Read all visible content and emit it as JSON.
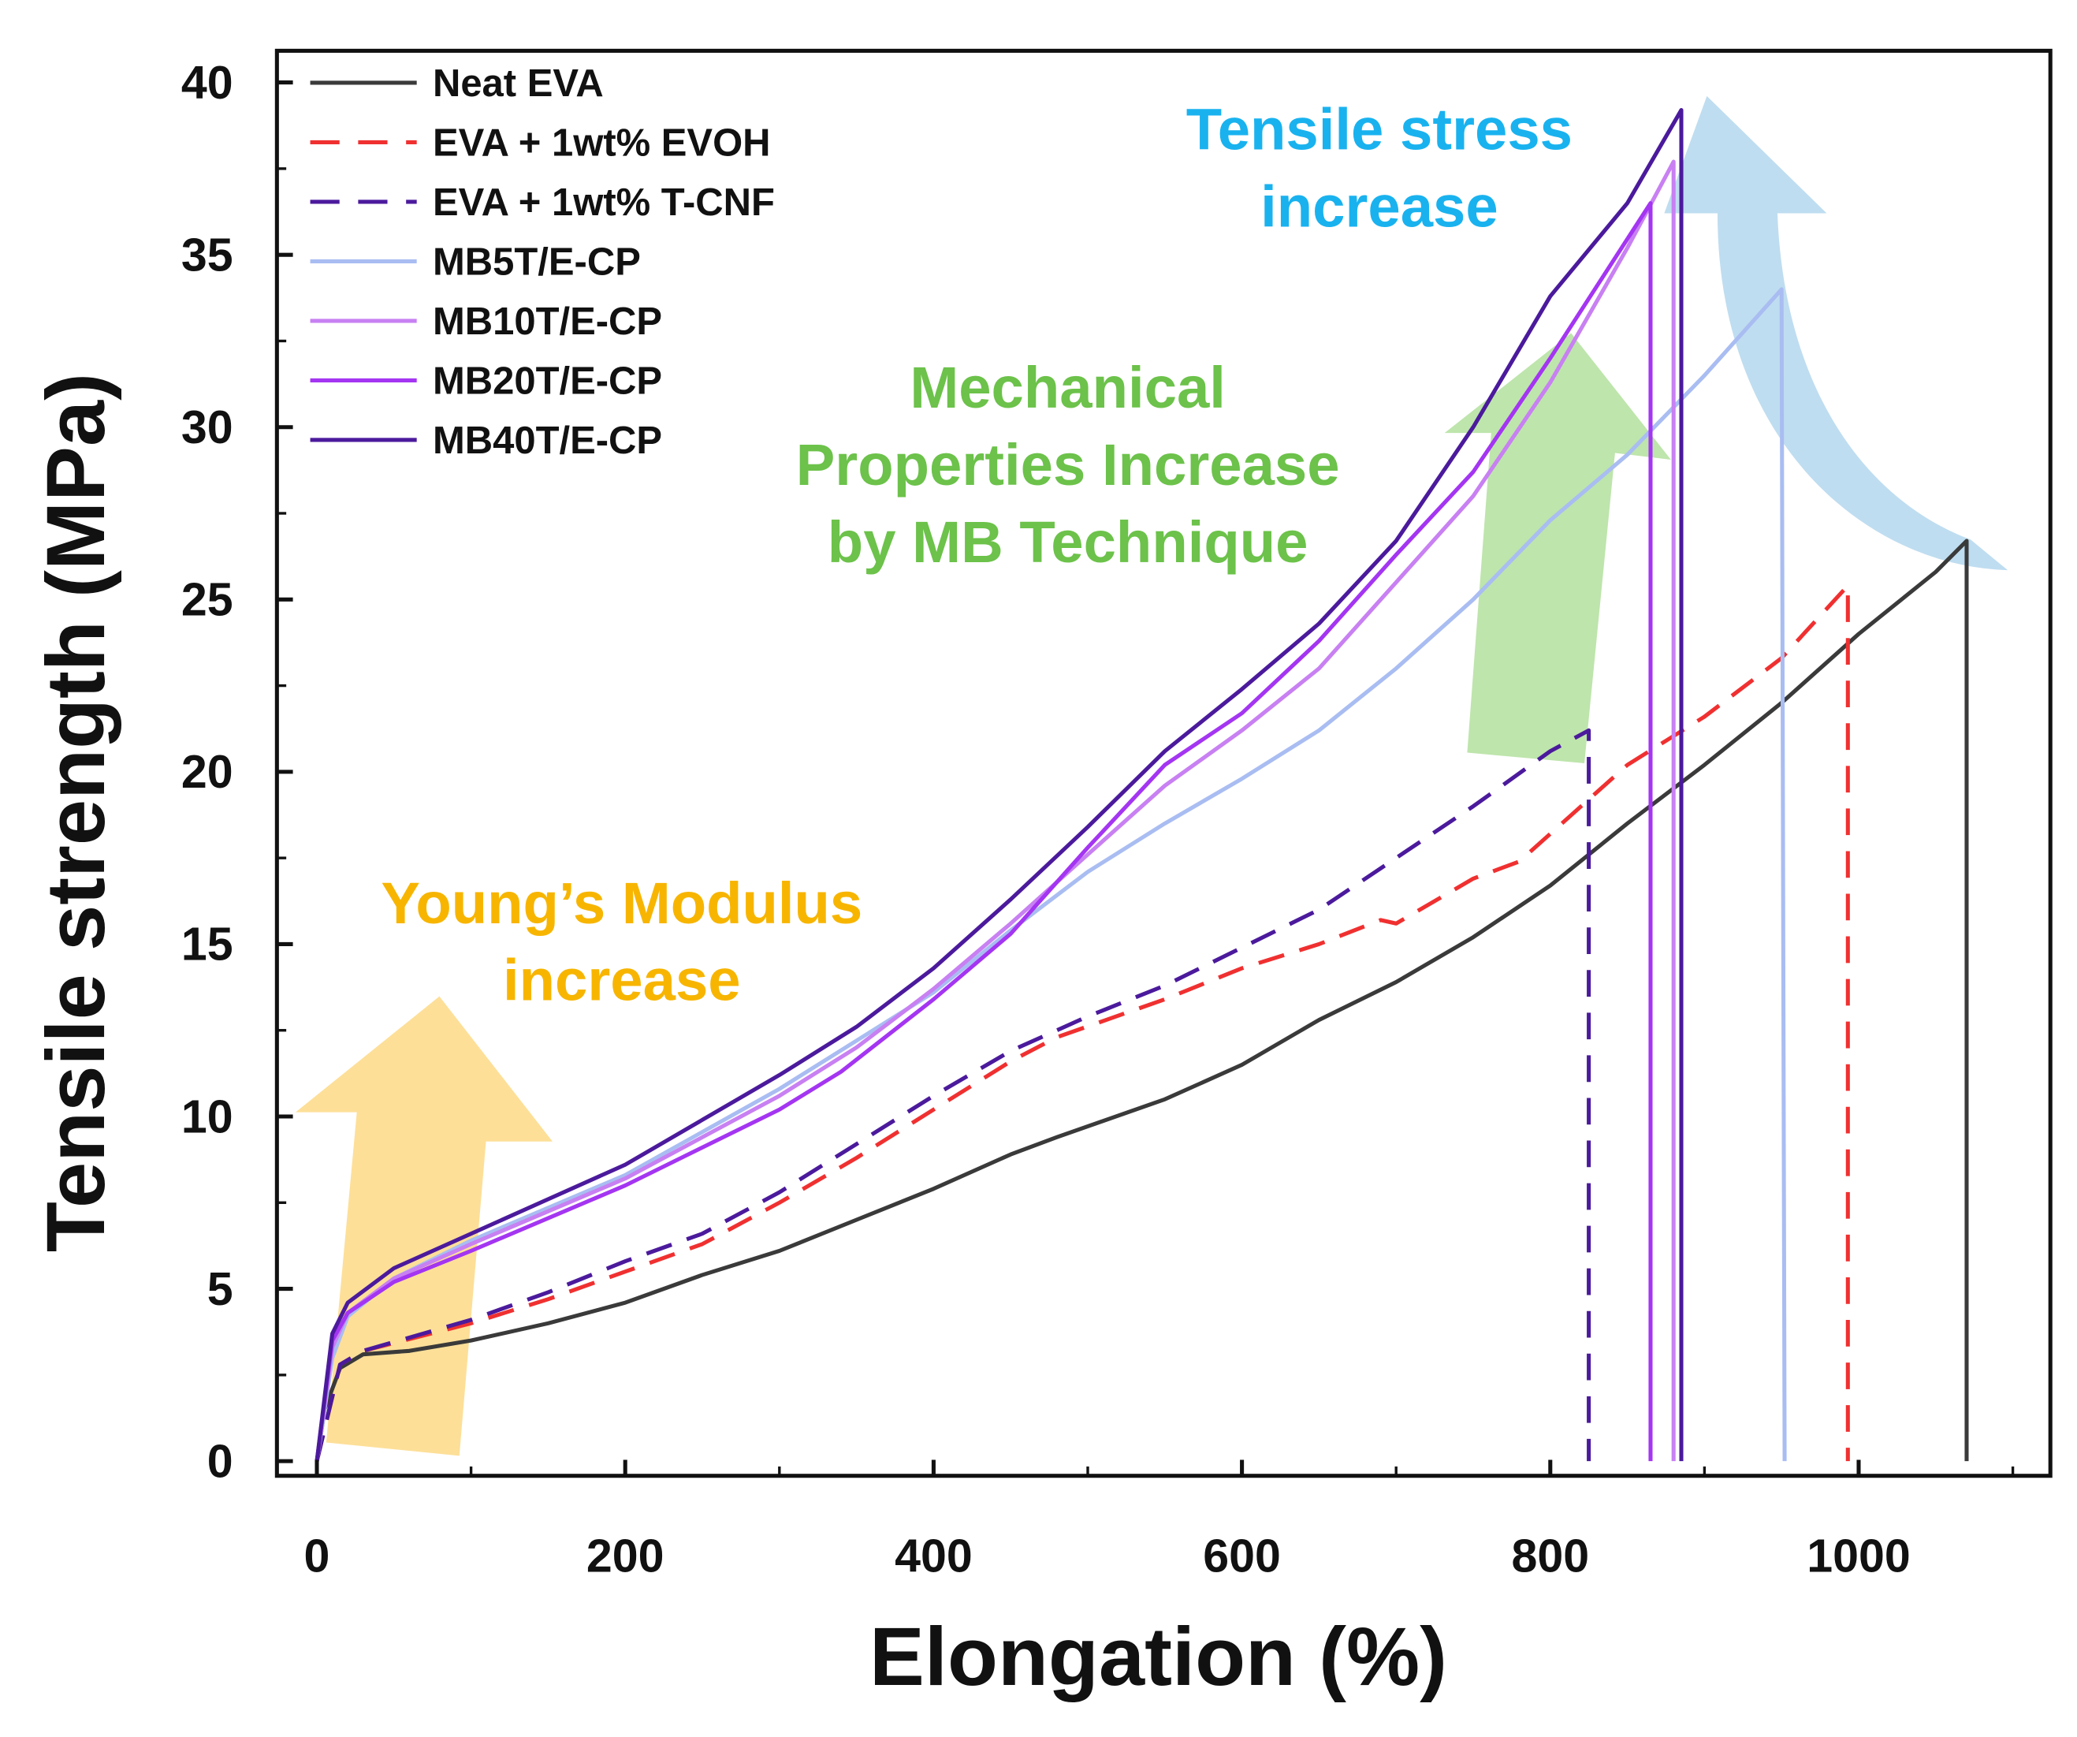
{
  "chart_data": {
    "type": "line",
    "xlabel": "Elongation (%)",
    "ylabel": "Tensile strength (MPa)",
    "xlim": [
      -25,
      1100
    ],
    "ylim": [
      -0.6,
      41
    ],
    "xticks": [
      0,
      200,
      400,
      600,
      800,
      1000
    ],
    "yticks": [
      0,
      5,
      10,
      15,
      20,
      25,
      30,
      35,
      40
    ],
    "grid": false,
    "legend_position": "top-left",
    "series": [
      {
        "name": "Neat EVA",
        "color": "#3a3a3a",
        "dash": false,
        "points": [
          [
            0,
            0
          ],
          [
            5,
            1.5
          ],
          [
            15,
            2.7
          ],
          [
            30,
            3.1
          ],
          [
            60,
            3.2
          ],
          [
            100,
            3.5
          ],
          [
            150,
            4.0
          ],
          [
            200,
            4.6
          ],
          [
            250,
            5.4
          ],
          [
            300,
            6.1
          ],
          [
            350,
            7.0
          ],
          [
            400,
            7.9
          ],
          [
            450,
            8.9
          ],
          [
            480,
            9.4
          ],
          [
            550,
            10.5
          ],
          [
            600,
            11.5
          ],
          [
            650,
            12.8
          ],
          [
            700,
            13.9
          ],
          [
            750,
            15.2
          ],
          [
            800,
            16.7
          ],
          [
            850,
            18.5
          ],
          [
            900,
            20.2
          ],
          [
            950,
            22.0
          ],
          [
            1000,
            24.0
          ],
          [
            1050,
            25.8
          ],
          [
            1070,
            26.7
          ],
          [
            1070,
            0
          ]
        ]
      },
      {
        "name": "EVA + 1wt% EVOH",
        "color": "#f03030",
        "dash": true,
        "points": [
          [
            0,
            0
          ],
          [
            15,
            2.8
          ],
          [
            30,
            3.2
          ],
          [
            100,
            4.0
          ],
          [
            150,
            4.7
          ],
          [
            200,
            5.5
          ],
          [
            250,
            6.3
          ],
          [
            300,
            7.5
          ],
          [
            350,
            8.8
          ],
          [
            400,
            10.2
          ],
          [
            450,
            11.6
          ],
          [
            480,
            12.3
          ],
          [
            550,
            13.4
          ],
          [
            600,
            14.3
          ],
          [
            650,
            15.0
          ],
          [
            690,
            15.7
          ],
          [
            700,
            15.6
          ],
          [
            750,
            16.9
          ],
          [
            780,
            17.4
          ],
          [
            850,
            20.2
          ],
          [
            900,
            21.6
          ],
          [
            950,
            23.3
          ],
          [
            993,
            25.4
          ],
          [
            993,
            0
          ]
        ]
      },
      {
        "name": "EVA + 1wt% T-CNF",
        "color": "#4b1a9c",
        "dash": true,
        "points": [
          [
            0,
            0
          ],
          [
            15,
            2.8
          ],
          [
            30,
            3.2
          ],
          [
            100,
            4.1
          ],
          [
            150,
            4.9
          ],
          [
            200,
            5.8
          ],
          [
            250,
            6.6
          ],
          [
            300,
            7.8
          ],
          [
            350,
            9.2
          ],
          [
            400,
            10.6
          ],
          [
            450,
            11.9
          ],
          [
            500,
            12.9
          ],
          [
            550,
            13.8
          ],
          [
            600,
            14.9
          ],
          [
            650,
            16.0
          ],
          [
            700,
            17.5
          ],
          [
            750,
            19.0
          ],
          [
            800,
            20.6
          ],
          [
            825,
            21.2
          ],
          [
            825,
            0
          ]
        ]
      },
      {
        "name": "MB5T/E-CP",
        "color": "#a9bdf2",
        "dash": false,
        "points": [
          [
            0,
            0
          ],
          [
            10,
            3.0
          ],
          [
            20,
            4.2
          ],
          [
            50,
            5.3
          ],
          [
            100,
            6.4
          ],
          [
            200,
            8.3
          ],
          [
            300,
            10.8
          ],
          [
            350,
            12.2
          ],
          [
            400,
            13.6
          ],
          [
            450,
            15.4
          ],
          [
            500,
            17.1
          ],
          [
            550,
            18.5
          ],
          [
            600,
            19.8
          ],
          [
            650,
            21.2
          ],
          [
            700,
            23.0
          ],
          [
            750,
            25.0
          ],
          [
            800,
            27.3
          ],
          [
            850,
            29.2
          ],
          [
            900,
            31.5
          ],
          [
            950,
            34.0
          ],
          [
            952,
            0
          ]
        ]
      },
      {
        "name": "MB10T/E-CP",
        "color": "#c880f2",
        "dash": false,
        "points": [
          [
            0,
            0
          ],
          [
            10,
            3.3
          ],
          [
            20,
            4.3
          ],
          [
            50,
            5.3
          ],
          [
            100,
            6.3
          ],
          [
            200,
            8.2
          ],
          [
            300,
            10.6
          ],
          [
            350,
            12.0
          ],
          [
            400,
            13.7
          ],
          [
            450,
            15.6
          ],
          [
            500,
            17.6
          ],
          [
            550,
            19.6
          ],
          [
            600,
            21.2
          ],
          [
            650,
            23.0
          ],
          [
            700,
            25.5
          ],
          [
            750,
            28.0
          ],
          [
            800,
            31.3
          ],
          [
            850,
            35.2
          ],
          [
            880,
            37.7
          ],
          [
            880,
            0
          ]
        ]
      },
      {
        "name": "MB20T/E-CP",
        "color": "#a435f2",
        "dash": false,
        "points": [
          [
            0,
            0
          ],
          [
            10,
            3.5
          ],
          [
            20,
            4.3
          ],
          [
            50,
            5.2
          ],
          [
            100,
            6.1
          ],
          [
            200,
            8.0
          ],
          [
            300,
            10.2
          ],
          [
            340,
            11.3
          ],
          [
            400,
            13.4
          ],
          [
            450,
            15.3
          ],
          [
            500,
            17.8
          ],
          [
            550,
            20.2
          ],
          [
            600,
            21.7
          ],
          [
            650,
            23.8
          ],
          [
            700,
            26.3
          ],
          [
            750,
            28.7
          ],
          [
            800,
            32.0
          ],
          [
            865,
            36.5
          ],
          [
            865,
            0
          ]
        ]
      },
      {
        "name": "MB40T/E-CP",
        "color": "#4b1a9c",
        "dash": false,
        "points": [
          [
            0,
            0
          ],
          [
            10,
            3.7
          ],
          [
            20,
            4.6
          ],
          [
            50,
            5.6
          ],
          [
            100,
            6.6
          ],
          [
            200,
            8.6
          ],
          [
            300,
            11.2
          ],
          [
            350,
            12.6
          ],
          [
            400,
            14.3
          ],
          [
            450,
            16.3
          ],
          [
            500,
            18.4
          ],
          [
            550,
            20.6
          ],
          [
            600,
            22.4
          ],
          [
            650,
            24.3
          ],
          [
            700,
            26.7
          ],
          [
            750,
            30.0
          ],
          [
            800,
            33.8
          ],
          [
            850,
            36.5
          ],
          [
            885,
            39.2
          ],
          [
            885,
            0
          ]
        ]
      }
    ],
    "annotations": [
      {
        "lines": [
          "Tensile stress",
          "increase"
        ],
        "color": "#19b2ef"
      },
      {
        "lines": [
          "Mechanical",
          "Properties Increase",
          "by MB Technique"
        ],
        "color": "#6cc24a"
      },
      {
        "lines": [
          "Young’s Modulus",
          "increase"
        ],
        "color": "#f7b500"
      }
    ]
  }
}
